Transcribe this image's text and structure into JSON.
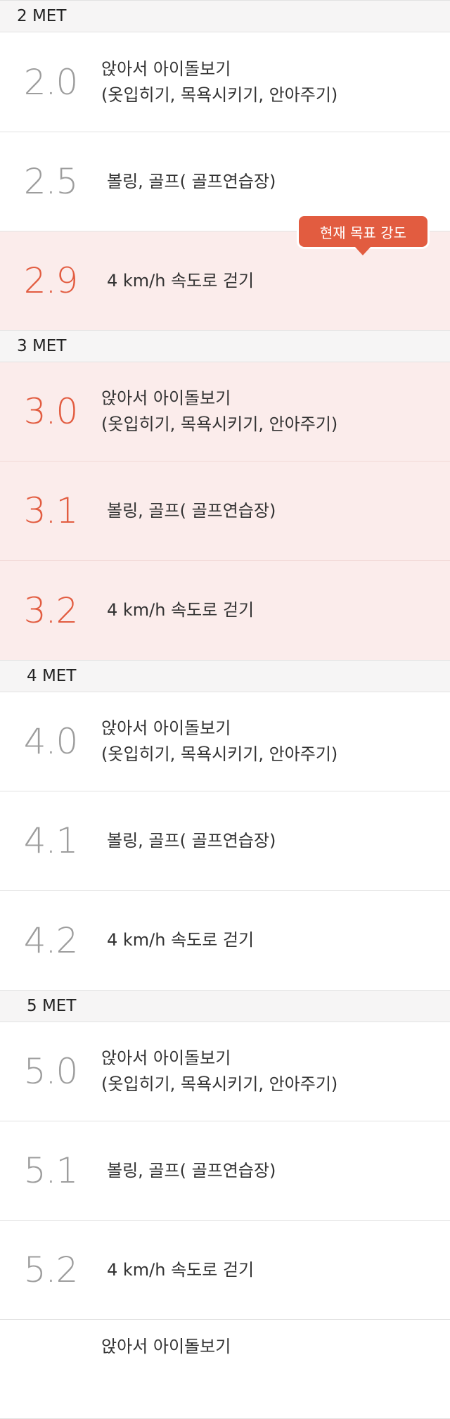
{
  "colors": {
    "accent": "#e25c40",
    "highlight_bg": "#fbeceb",
    "muted_value": "#9d9d9d",
    "header_bg": "#f6f5f5"
  },
  "tooltip": {
    "label": "현재 목표 강도"
  },
  "sections": [
    {
      "header": "2 MET"
    },
    {
      "header": "3 MET"
    },
    {
      "header": "4 MET"
    },
    {
      "header": "5 MET"
    }
  ],
  "rows": [
    {
      "value": "2.0",
      "line1": "앉아서 아이돌보기",
      "line2": "(옷입히기, 목욕시키기, 안아주기)",
      "highlighted": false
    },
    {
      "value": "2.5",
      "line1": "볼링,  골프( 골프연습장)",
      "highlighted": false
    },
    {
      "value": "2.9",
      "line1": "4 km/h 속도로 걷기",
      "highlighted": true,
      "current_target": true
    },
    {
      "value": "3.0",
      "line1": "앉아서 아이돌보기",
      "line2": "(옷입히기, 목욕시키기, 안아주기)",
      "highlighted": true
    },
    {
      "value": "3.1",
      "line1": "볼링,  골프( 골프연습장)",
      "highlighted": true
    },
    {
      "value": "3.2",
      "line1": "4 km/h 속도로 걷기",
      "highlighted": true
    },
    {
      "value": "4.0",
      "line1": "앉아서 아이돌보기",
      "line2": "(옷입히기, 목욕시키기, 안아주기)",
      "highlighted": false
    },
    {
      "value": "4.1",
      "line1": "볼링,  골프( 골프연습장)",
      "highlighted": false
    },
    {
      "value": "4.2",
      "line1": "4 km/h 속도로 걷기",
      "highlighted": false
    },
    {
      "value": "5.0",
      "line1": "앉아서 아이돌보기",
      "line2": "(옷입히기, 목욕시키기, 안아주기)",
      "highlighted": false
    },
    {
      "value": "5.1",
      "line1": "볼링,  골프( 골프연습장)",
      "highlighted": false
    },
    {
      "value": "5.2",
      "line1": "4 km/h 속도로 걷기",
      "highlighted": false
    },
    {
      "value": "",
      "line1": "앉아서 아이돌보기",
      "highlighted": false
    }
  ]
}
